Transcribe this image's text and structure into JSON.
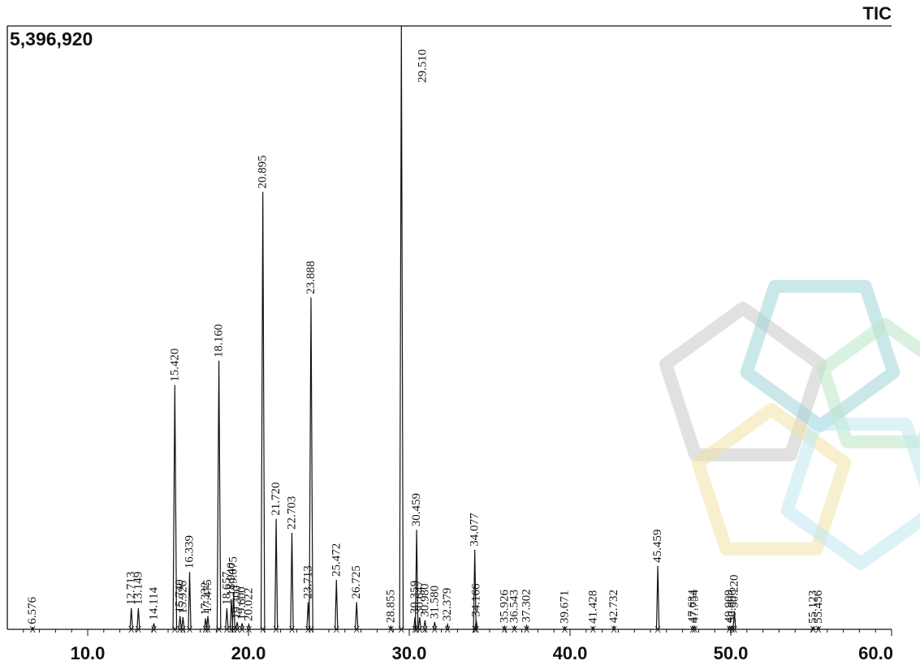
{
  "chart_data": {
    "type": "line",
    "title": "TIC",
    "y_max_label": "5,396,920",
    "xlim": [
      5.0,
      60.0
    ],
    "ylim": [
      0,
      5396920
    ],
    "x_ticks": [
      {
        "value": 10.0,
        "label": "10.0"
      },
      {
        "value": 20.0,
        "label": "20.0"
      },
      {
        "value": 30.0,
        "label": "30.0"
      },
      {
        "value": 40.0,
        "label": "40.0"
      },
      {
        "value": 50.0,
        "label": "50.0"
      },
      {
        "value": 60.0,
        "label": "60.0"
      }
    ],
    "peaks": [
      {
        "rt": 6.576,
        "label": "6.576",
        "height": 0.003
      },
      {
        "rt": 12.713,
        "label": "12.713",
        "height": 0.035
      },
      {
        "rt": 13.149,
        "label": "13.149",
        "height": 0.035
      },
      {
        "rt": 14.114,
        "label": "14.114",
        "height": 0.01
      },
      {
        "rt": 15.42,
        "label": "15.420",
        "height": 0.405
      },
      {
        "rt": 15.74,
        "label": "15.740",
        "height": 0.022
      },
      {
        "rt": 15.926,
        "label": "15.926",
        "height": 0.02
      },
      {
        "rt": 16.339,
        "label": "16.339",
        "height": 0.095
      },
      {
        "rt": 17.332,
        "label": "17.332",
        "height": 0.018
      },
      {
        "rt": 17.475,
        "label": "17.475",
        "height": 0.022
      },
      {
        "rt": 18.16,
        "label": "18.160",
        "height": 0.445
      },
      {
        "rt": 18.657,
        "label": "18.657",
        "height": 0.035
      },
      {
        "rt": 18.94,
        "label": "18.940",
        "height": 0.05
      },
      {
        "rt": 19.075,
        "label": "19.075",
        "height": 0.06
      },
      {
        "rt": 19.3,
        "label": "19.300",
        "height": 0.012
      },
      {
        "rt": 19.6,
        "label": "19.600",
        "height": 0.01
      },
      {
        "rt": 20.022,
        "label": "20.022",
        "height": 0.008
      },
      {
        "rt": 20.895,
        "label": "20.895",
        "height": 0.725
      },
      {
        "rt": 21.72,
        "label": "21.720",
        "height": 0.183
      },
      {
        "rt": 22.703,
        "label": "22.703",
        "height": 0.16
      },
      {
        "rt": 23.713,
        "label": "23.713",
        "height": 0.045
      },
      {
        "rt": 23.888,
        "label": "23.888",
        "height": 0.55
      },
      {
        "rt": 25.472,
        "label": "25.472",
        "height": 0.082
      },
      {
        "rt": 26.725,
        "label": "26.725",
        "height": 0.045
      },
      {
        "rt": 28.855,
        "label": "28.855",
        "height": 0.005
      },
      {
        "rt": 29.51,
        "label": "29.510",
        "height": 1.0
      },
      {
        "rt": 30.359,
        "label": "30.359",
        "height": 0.02
      },
      {
        "rt": 30.459,
        "label": "30.459",
        "height": 0.165
      },
      {
        "rt": 30.647,
        "label": "30.647",
        "height": 0.02
      },
      {
        "rt": 30.98,
        "label": "30.980",
        "height": 0.015
      },
      {
        "rt": 31.58,
        "label": "31.580",
        "height": 0.012
      },
      {
        "rt": 32.379,
        "label": "32.379",
        "height": 0.008
      },
      {
        "rt": 34.077,
        "label": "34.077",
        "height": 0.132
      },
      {
        "rt": 34.166,
        "label": "34.166",
        "height": 0.015
      },
      {
        "rt": 35.926,
        "label": "35.926",
        "height": 0.005
      },
      {
        "rt": 36.543,
        "label": "36.543",
        "height": 0.005
      },
      {
        "rt": 37.302,
        "label": "37.302",
        "height": 0.006
      },
      {
        "rt": 39.671,
        "label": "39.671",
        "height": 0.004
      },
      {
        "rt": 41.428,
        "label": "41.428",
        "height": 0.004
      },
      {
        "rt": 42.732,
        "label": "42.732",
        "height": 0.005
      },
      {
        "rt": 45.459,
        "label": "45.459",
        "height": 0.105
      },
      {
        "rt": 47.634,
        "label": "47.634",
        "height": 0.005
      },
      {
        "rt": 47.754,
        "label": "47.754",
        "height": 0.005
      },
      {
        "rt": 49.909,
        "label": "49.909",
        "height": 0.005
      },
      {
        "rt": 50.22,
        "label": "50.220",
        "height": 0.03
      },
      {
        "rt": 50.096,
        "label": "50.096",
        "height": 0.005
      },
      {
        "rt": 55.123,
        "label": "55.123",
        "height": 0.004
      },
      {
        "rt": 55.456,
        "label": "55.456",
        "height": 0.004
      }
    ]
  },
  "watermark": {
    "colors": [
      "#c9c9c9",
      "#9fd6d8",
      "#bde6c7",
      "#f1e1a6",
      "#bfe7ef"
    ]
  }
}
